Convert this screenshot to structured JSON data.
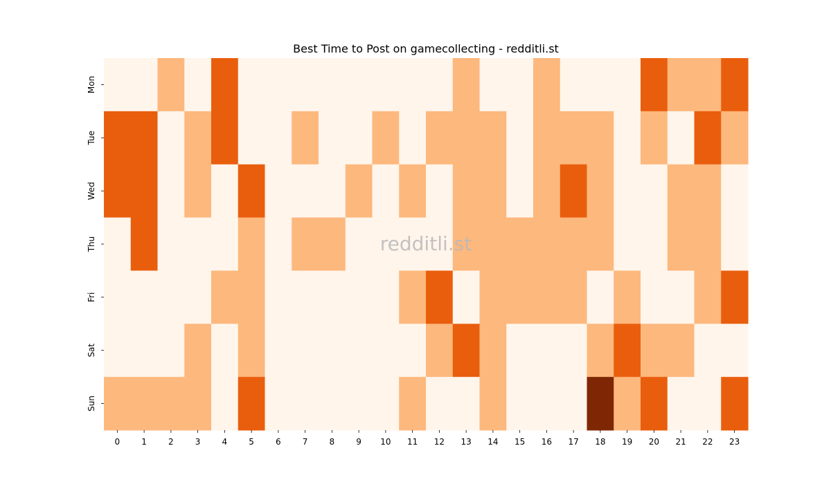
{
  "chart_data": {
    "type": "heatmap",
    "title": "Best Time to Post on gamecollecting - redditli.st",
    "xlabel": "",
    "ylabel": "",
    "x_categories": [
      "0",
      "1",
      "2",
      "3",
      "4",
      "5",
      "6",
      "7",
      "8",
      "9",
      "10",
      "11",
      "12",
      "13",
      "14",
      "15",
      "16",
      "17",
      "18",
      "19",
      "20",
      "21",
      "22",
      "23"
    ],
    "y_categories": [
      "Mon",
      "Tue",
      "Wed",
      "Thu",
      "Fri",
      "Sat",
      "Sun"
    ],
    "values": [
      [
        0,
        0,
        1,
        0,
        2,
        0,
        0,
        0,
        0,
        0,
        0,
        0,
        0,
        1,
        0,
        0,
        1,
        0,
        0,
        0,
        2,
        1,
        1,
        2
      ],
      [
        2,
        2,
        0,
        1,
        2,
        0,
        0,
        1,
        0,
        0,
        1,
        0,
        1,
        1,
        1,
        0,
        1,
        1,
        1,
        0,
        1,
        0,
        2,
        1
      ],
      [
        2,
        2,
        0,
        1,
        0,
        2,
        0,
        0,
        0,
        1,
        0,
        1,
        0,
        1,
        1,
        0,
        1,
        2,
        1,
        0,
        0,
        1,
        1,
        0
      ],
      [
        0,
        2,
        0,
        0,
        0,
        1,
        0,
        1,
        1,
        0,
        0,
        0,
        0,
        1,
        1,
        1,
        1,
        1,
        1,
        0,
        0,
        1,
        1,
        0
      ],
      [
        0,
        0,
        0,
        0,
        1,
        1,
        0,
        0,
        0,
        0,
        0,
        1,
        2,
        0,
        1,
        1,
        1,
        1,
        0,
        1,
        0,
        0,
        1,
        2
      ],
      [
        0,
        0,
        0,
        1,
        0,
        1,
        0,
        0,
        0,
        0,
        0,
        0,
        1,
        2,
        1,
        0,
        0,
        0,
        1,
        2,
        1,
        1,
        0,
        0
      ],
      [
        1,
        1,
        1,
        1,
        0,
        2,
        0,
        0,
        0,
        0,
        0,
        1,
        0,
        0,
        1,
        0,
        0,
        0,
        3,
        1,
        2,
        0,
        0,
        2
      ]
    ],
    "color_scale": [
      "#fff5eb",
      "#fdb87d",
      "#e95e0d",
      "#7f2704"
    ],
    "legend": "none",
    "grid": false,
    "watermark": "redditli.st"
  }
}
